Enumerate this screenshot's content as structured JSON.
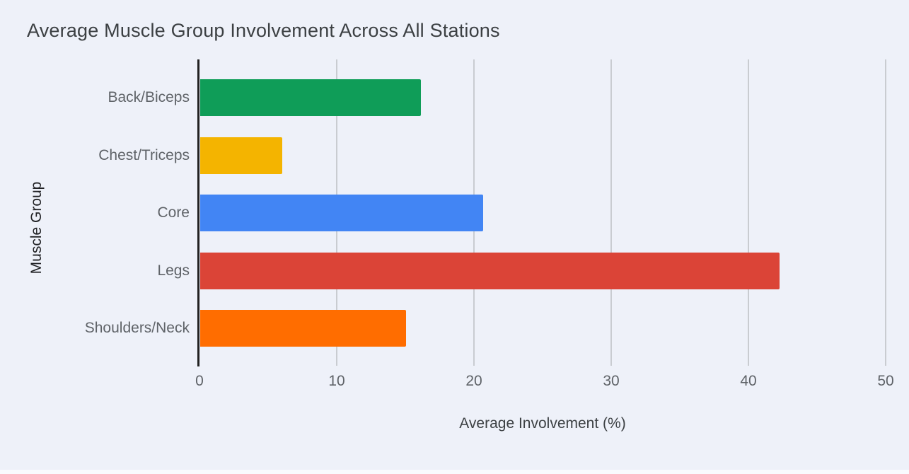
{
  "chart_data": {
    "type": "bar",
    "orientation": "horizontal",
    "title": "Average Muscle Group Involvement Across All Stations",
    "xlabel": "Average Involvement (%)",
    "ylabel": "Muscle Group",
    "categories": [
      "Back/Biceps",
      "Chest/Triceps",
      "Core",
      "Legs",
      "Shoulders/Neck"
    ],
    "values": [
      16.1,
      6,
      20.6,
      42.2,
      15
    ],
    "bar_colors": [
      "#0f9d58",
      "#f4b400",
      "#4285f4",
      "#db4437",
      "#ff6d00"
    ],
    "xlim": [
      0,
      50
    ],
    "xticks": [
      0,
      10,
      20,
      30,
      40,
      50
    ],
    "grid": "vertical-gridlines-on",
    "legend": "none"
  },
  "theme": {
    "background": "#eef1f9",
    "grid_color": "#c9ccd1",
    "axis_color": "#212121",
    "title_color": "#3c4043",
    "tick_label_color": "#5f6368",
    "axis_label_color": "#3c4043"
  }
}
